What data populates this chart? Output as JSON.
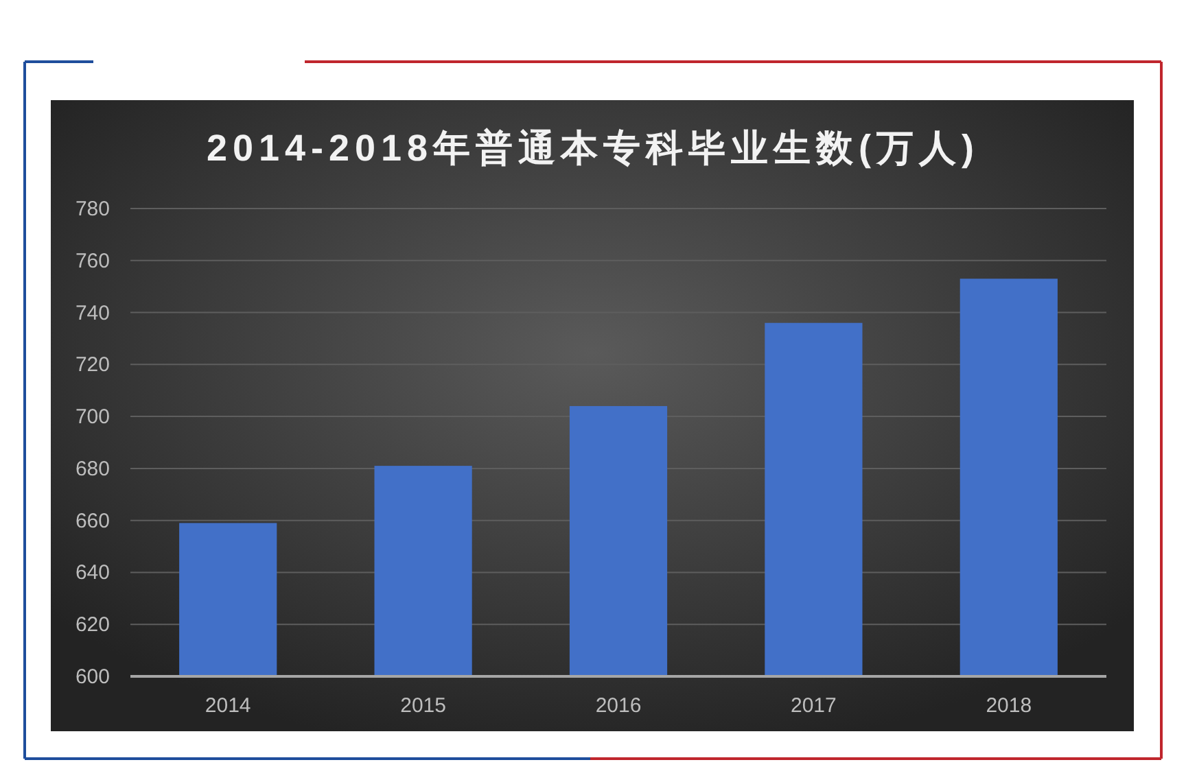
{
  "chart_data": {
    "type": "bar",
    "title": "2014-2018年普通本专科毕业生数(万人)",
    "categories": [
      "2014",
      "2015",
      "2016",
      "2017",
      "2018"
    ],
    "values": [
      659,
      681,
      704,
      736,
      753
    ],
    "color": "#4270c8",
    "ylim": [
      600,
      780
    ],
    "yticks": [
      600,
      620,
      640,
      660,
      680,
      700,
      720,
      740,
      760,
      780
    ],
    "grid": "y"
  }
}
